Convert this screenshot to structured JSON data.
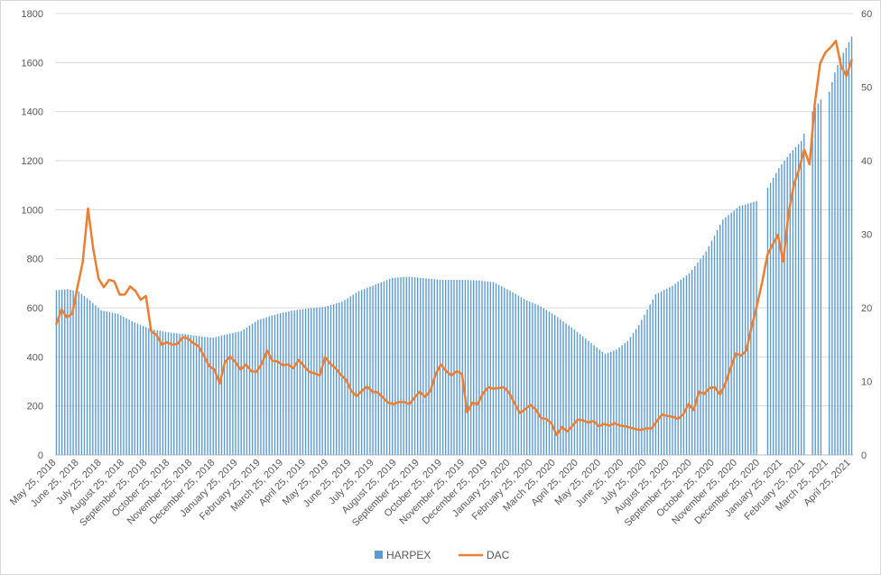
{
  "chart_data": {
    "type": "bar+line",
    "grid": true,
    "legend_position": "bottom",
    "left_axis": {
      "ylim": [
        0,
        1800
      ],
      "ticks": [
        "0",
        "200",
        "400",
        "600",
        "800",
        "1000",
        "1200",
        "1400",
        "1600",
        "1800"
      ]
    },
    "right_axis": {
      "ylim": [
        0,
        60
      ],
      "ticks": [
        "0",
        "10",
        "20",
        "30",
        "40",
        "50",
        "60"
      ]
    },
    "x_tick_labels": [
      "May 25, 2018",
      "June 25, 2018",
      "July 25, 2018",
      "August 25, 2018",
      "September 25, 2018",
      "October 25, 2018",
      "November 25, 2018",
      "December 25, 2018",
      "January 25, 2019",
      "February 25, 2019",
      "March 25, 2019",
      "April 25, 2019",
      "May 25, 2019",
      "June 25, 2019",
      "July 25, 2019",
      "August 25, 2019",
      "September 25, 2019",
      "October 25, 2019",
      "November 25, 2019",
      "December 25, 2019",
      "January 25, 2020",
      "February 25, 2020",
      "March 25, 2020",
      "April 25, 2020",
      "May 25, 2020",
      "June 25, 2020",
      "July 25, 2020",
      "August 25, 2020",
      "September 25, 2020",
      "October 25, 2020",
      "November 25, 2020",
      "December 25, 2020",
      "January 25, 2021",
      "February 25, 2021",
      "March 25, 2021",
      "April 25, 2021"
    ],
    "series": [
      {
        "name": "HARPEX",
        "type": "bar",
        "axis": "left",
        "color": "#5b9bd5",
        "anchors": [
          [
            0,
            672
          ],
          [
            4,
            676
          ],
          [
            8,
            666
          ],
          [
            12,
            630
          ],
          [
            16,
            590
          ],
          [
            22,
            575
          ],
          [
            28,
            540
          ],
          [
            34,
            512
          ],
          [
            40,
            500
          ],
          [
            46,
            492
          ],
          [
            52,
            483
          ],
          [
            56,
            478
          ],
          [
            60,
            490
          ],
          [
            66,
            505
          ],
          [
            72,
            550
          ],
          [
            78,
            572
          ],
          [
            84,
            588
          ],
          [
            90,
            598
          ],
          [
            96,
            604
          ],
          [
            102,
            625
          ],
          [
            108,
            668
          ],
          [
            114,
            695
          ],
          [
            120,
            722
          ],
          [
            126,
            727
          ],
          [
            132,
            720
          ],
          [
            138,
            714
          ],
          [
            144,
            714
          ],
          [
            150,
            712
          ],
          [
            156,
            705
          ],
          [
            162,
            670
          ],
          [
            168,
            630
          ],
          [
            172,
            612
          ],
          [
            178,
            570
          ],
          [
            184,
            520
          ],
          [
            190,
            465
          ],
          [
            196,
            412
          ],
          [
            200,
            430
          ],
          [
            204,
            465
          ],
          [
            208,
            530
          ],
          [
            214,
            655
          ],
          [
            220,
            690
          ],
          [
            226,
            740
          ],
          [
            232,
            830
          ],
          [
            238,
            960
          ],
          [
            244,
            1015
          ],
          [
            250,
            1035
          ],
          [
            254,
            1090
          ],
          [
            258,
            1170
          ],
          [
            262,
            1230
          ],
          [
            266,
            1280
          ],
          [
            270,
            1400
          ],
          [
            273,
            1450
          ],
          [
            276,
            1480
          ],
          [
            278,
            1560
          ],
          [
            280,
            1620
          ],
          [
            282,
            1660
          ],
          [
            284,
            1706
          ]
        ],
        "gaps": [
          [
            251,
            253
          ],
          [
            268,
            269
          ],
          [
            274,
            275
          ]
        ]
      },
      {
        "name": "DAC",
        "type": "line",
        "axis": "right",
        "color": "#ed7d31",
        "anchors": [
          [
            0,
            17.8
          ],
          [
            2,
            19.8
          ],
          [
            4,
            18.7
          ],
          [
            6,
            19.2
          ],
          [
            8,
            22.8
          ],
          [
            10,
            26.2
          ],
          [
            12,
            33.5
          ],
          [
            14,
            28
          ],
          [
            16,
            24
          ],
          [
            18,
            22.8
          ],
          [
            20,
            23.8
          ],
          [
            22,
            23.6
          ],
          [
            24,
            21.8
          ],
          [
            26,
            21.8
          ],
          [
            28,
            22.9
          ],
          [
            30,
            22.3
          ],
          [
            32,
            21.1
          ],
          [
            34,
            21.6
          ],
          [
            36,
            16.8
          ],
          [
            38,
            16.3
          ],
          [
            40,
            15
          ],
          [
            42,
            15.3
          ],
          [
            44,
            15
          ],
          [
            46,
            15.1
          ],
          [
            48,
            16
          ],
          [
            50,
            15.8
          ],
          [
            52,
            15.2
          ],
          [
            54,
            14.8
          ],
          [
            56,
            13.5
          ],
          [
            58,
            12.1
          ],
          [
            60,
            11.6
          ],
          [
            62,
            9.7
          ],
          [
            64,
            12.6
          ],
          [
            66,
            13.4
          ],
          [
            68,
            12.6
          ],
          [
            70,
            11.6
          ],
          [
            72,
            12.3
          ],
          [
            74,
            11.4
          ],
          [
            76,
            11.3
          ],
          [
            78,
            12.4
          ],
          [
            80,
            14.2
          ],
          [
            82,
            12.8
          ],
          [
            84,
            12.7
          ],
          [
            86,
            12.2
          ],
          [
            88,
            12.3
          ],
          [
            90,
            11.8
          ],
          [
            92,
            12.9
          ],
          [
            94,
            12.1
          ],
          [
            96,
            11.3
          ],
          [
            98,
            11.1
          ],
          [
            100,
            10.8
          ],
          [
            102,
            13.3
          ],
          [
            104,
            12.4
          ],
          [
            106,
            11.8
          ],
          [
            108,
            10.9
          ],
          [
            110,
            10.2
          ],
          [
            112,
            8.7
          ],
          [
            114,
            8
          ],
          [
            116,
            8.7
          ],
          [
            118,
            9.3
          ],
          [
            120,
            8.6
          ],
          [
            122,
            8.5
          ],
          [
            124,
            7.8
          ],
          [
            126,
            7.1
          ],
          [
            128,
            6.9
          ],
          [
            130,
            7.2
          ],
          [
            132,
            7.2
          ],
          [
            134,
            6.9
          ],
          [
            136,
            7.8
          ],
          [
            138,
            8.6
          ],
          [
            140,
            7.9
          ],
          [
            142,
            8.7
          ],
          [
            144,
            11
          ],
          [
            146,
            12.3
          ],
          [
            148,
            11.4
          ],
          [
            150,
            10.8
          ],
          [
            152,
            11.4
          ],
          [
            154,
            11
          ],
          [
            156,
            5.8
          ],
          [
            158,
            7.1
          ],
          [
            160,
            6.9
          ],
          [
            162,
            8.4
          ],
          [
            164,
            9.2
          ],
          [
            166,
            9
          ],
          [
            168,
            9.1
          ],
          [
            170,
            9.2
          ],
          [
            172,
            8.4
          ],
          [
            174,
            7
          ],
          [
            176,
            5.7
          ],
          [
            178,
            6.2
          ],
          [
            180,
            6.8
          ],
          [
            182,
            6.2
          ],
          [
            184,
            5
          ],
          [
            186,
            4.9
          ],
          [
            188,
            4.3
          ],
          [
            190,
            2.7
          ],
          [
            192,
            3.8
          ],
          [
            194,
            3.2
          ],
          [
            196,
            4
          ],
          [
            198,
            4.8
          ],
          [
            200,
            4.7
          ],
          [
            202,
            4.4
          ],
          [
            204,
            4.6
          ],
          [
            206,
            3.9
          ],
          [
            208,
            4.2
          ],
          [
            210,
            4
          ],
          [
            212,
            4.3
          ],
          [
            214,
            4
          ],
          [
            216,
            3.9
          ],
          [
            218,
            3.7
          ],
          [
            220,
            3.5
          ],
          [
            222,
            3.4
          ],
          [
            224,
            3.6
          ],
          [
            226,
            3.6
          ],
          [
            228,
            4.6
          ],
          [
            230,
            5.5
          ],
          [
            232,
            5.3
          ],
          [
            234,
            5.2
          ],
          [
            236,
            4.9
          ],
          [
            238,
            5.5
          ],
          [
            240,
            6.9
          ],
          [
            242,
            6.1
          ],
          [
            244,
            8.6
          ],
          [
            246,
            8.3
          ],
          [
            248,
            9.1
          ],
          [
            250,
            9.2
          ],
          [
            252,
            8.2
          ],
          [
            254,
            9.7
          ],
          [
            256,
            11.8
          ],
          [
            258,
            13.8
          ],
          [
            260,
            13.5
          ],
          [
            262,
            14.2
          ],
          [
            264,
            17.4
          ],
          [
            266,
            20.3
          ],
          [
            268,
            23.5
          ],
          [
            270,
            27.2
          ],
          [
            272,
            28.6
          ],
          [
            274,
            29.9
          ],
          [
            276,
            26.3
          ],
          [
            278,
            32.8
          ],
          [
            280,
            36.7
          ],
          [
            282,
            38.8
          ],
          [
            284,
            41.5
          ],
          [
            286,
            39.5
          ],
          [
            288,
            47.8
          ],
          [
            290,
            53.2
          ],
          [
            292,
            54.7
          ],
          [
            294,
            55.4
          ],
          [
            296,
            56.3
          ],
          [
            298,
            52.8
          ],
          [
            300,
            51.5
          ],
          [
            302,
            53.7
          ]
        ]
      }
    ]
  }
}
